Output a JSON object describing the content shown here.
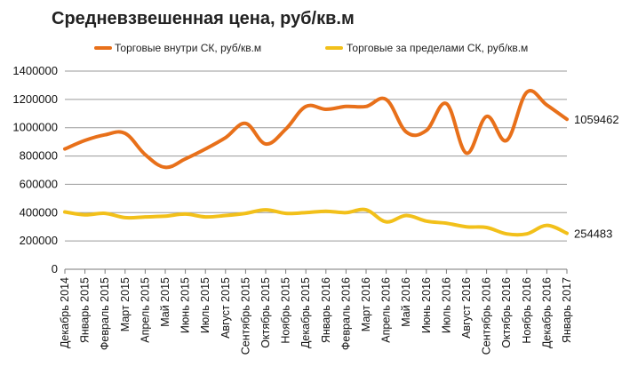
{
  "chart_data": {
    "type": "line",
    "title": "Средневзвешенная цена, руб/кв.м",
    "xlabel": "",
    "ylabel": "",
    "ylim": [
      0,
      1400000
    ],
    "y_ticks": [
      "0",
      "200000",
      "400000",
      "600000",
      "800000",
      "1000000",
      "1200000",
      "1400000"
    ],
    "grid": "horizontal",
    "legend_position": "top",
    "categories": [
      "Декабрь 2014",
      "Январь 2015",
      "Февраль 2015",
      "Март 2015",
      "Апрель 2015",
      "Май 2015",
      "Июнь 2015",
      "Июль 2015",
      "Август 2015",
      "Сентябрь 2015",
      "Октябрь 2015",
      "Ноябрь 2015",
      "Декабрь 2015",
      "Январь 2016",
      "Февраль 2016",
      "Март 2016",
      "Апрель 2016",
      "Май 2016",
      "Июнь 2016",
      "Июль 2016",
      "Август 2016",
      "Сентябрь 2016",
      "Октябрь 2016",
      "Ноябрь 2016",
      "Декабрь 2016",
      "Январь 2017"
    ],
    "series": [
      {
        "name": "Торговые внутри СК, руб/кв.м",
        "color": "#E8701A",
        "values": [
          850000,
          910000,
          950000,
          960000,
          810000,
          720000,
          780000,
          850000,
          930000,
          1030000,
          885000,
          990000,
          1150000,
          1130000,
          1150000,
          1150000,
          1200000,
          970000,
          980000,
          1170000,
          820000,
          1080000,
          910000,
          1250000,
          1160000,
          1059462
        ],
        "end_label": "1059462"
      },
      {
        "name": "Торговые за пределами СК, руб/кв.м",
        "color": "#F2C01A",
        "values": [
          405000,
          385000,
          395000,
          365000,
          370000,
          375000,
          390000,
          370000,
          380000,
          395000,
          420000,
          395000,
          400000,
          410000,
          400000,
          420000,
          335000,
          380000,
          340000,
          325000,
          300000,
          295000,
          250000,
          250000,
          310000,
          254483
        ],
        "end_label": "254483"
      }
    ]
  }
}
